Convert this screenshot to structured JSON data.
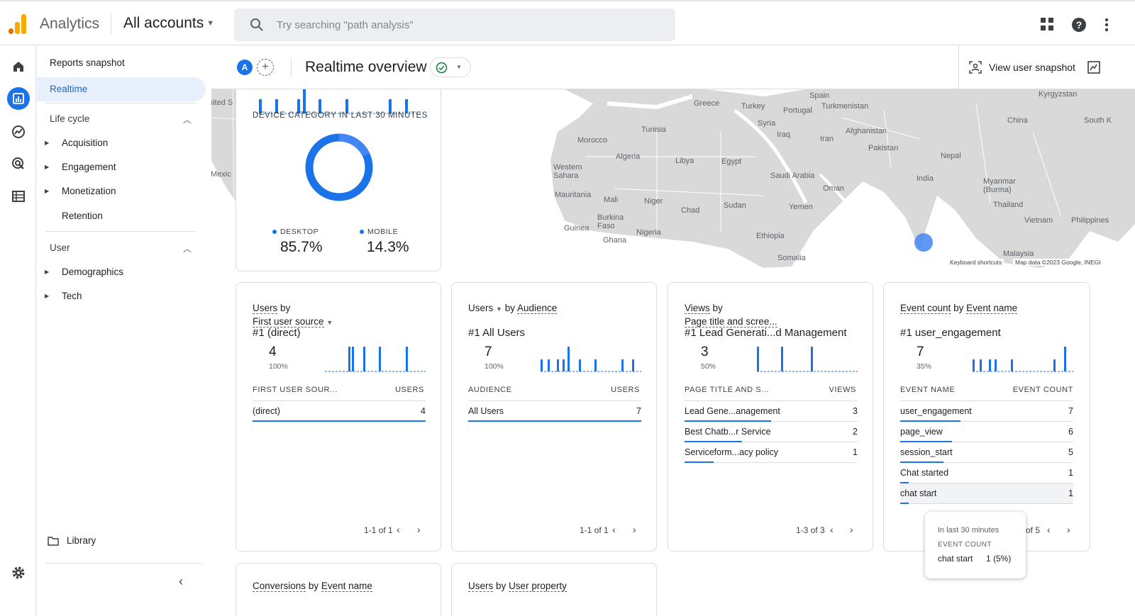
{
  "topbar": {
    "brand": "Analytics",
    "accounts": "All accounts",
    "search_placeholder": "Try searching \"path analysis\""
  },
  "sidenav": {
    "snapshot": "Reports snapshot",
    "realtime": "Realtime",
    "lifecycle": "Life cycle",
    "lifecycle_items": [
      "Acquisition",
      "Engagement",
      "Monetization",
      "Retention"
    ],
    "user": "User",
    "user_items": [
      "Demographics",
      "Tech"
    ],
    "library": "Library"
  },
  "header": {
    "avatar": "A",
    "title": "Realtime overview",
    "snapshot": "View user snapshot"
  },
  "map": {
    "labels": [
      "Spain",
      "Portugal",
      "Greece",
      "Turkey",
      "Turkmenistan",
      "Kyrgyzstan",
      "China",
      "South K",
      "Tunisia",
      "Syria",
      "Iraq",
      "Iran",
      "Afghanistan",
      "Morocco",
      "Algeria",
      "Libya",
      "Egypt",
      "Pakistan",
      "Nepal",
      "Western Sahara",
      "Saudi Arabia",
      "India",
      "Myanmar (Burma)",
      "Mauritania",
      "Mali",
      "Niger",
      "Oman",
      "Chad",
      "Sudan",
      "Yemen",
      "Thailand",
      "Burkina Faso",
      "Guinea",
      "Nigeria",
      "Ghana",
      "Ethiopia",
      "Vietnam",
      "Philippines",
      "Somalia",
      "Malaysia",
      "nited S",
      "Mexic"
    ],
    "footer_shortcuts": "Keyboard shortcuts",
    "footer_data": "Map data ©2023 Google, INEGI"
  },
  "device_card": {
    "title": "DEVICE CATEGORY IN LAST 30 MINUTES",
    "desktop_label": "DESKTOP",
    "desktop_value": "85.7%",
    "mobile_label": "MOBILE",
    "mobile_value": "14.3%"
  },
  "cards": [
    {
      "title_a": "Users",
      "title_b": "by",
      "title_c": "First user source",
      "top": "#1  (direct)",
      "value": "4",
      "pct": "100%",
      "col1": "FIRST USER SOUR...",
      "col2": "USERS",
      "rows": [
        {
          "label": "(direct)",
          "value": "4"
        }
      ],
      "pager": "1-1 of 1"
    },
    {
      "title_a": "Users",
      "title_b": "by",
      "title_c": "Audience",
      "top": "#1  All Users",
      "value": "7",
      "pct": "100%",
      "col1": "AUDIENCE",
      "col2": "USERS",
      "rows": [
        {
          "label": "All Users",
          "value": "7"
        }
      ],
      "pager": "1-1 of 1"
    },
    {
      "title_a": "Views",
      "title_b": "by",
      "title_c": "Page title and scree...",
      "top": "#1  Lead Generati...d Management",
      "value": "3",
      "pct": "50%",
      "col1": "PAGE TITLE AND S...",
      "col2": "VIEWS",
      "rows": [
        {
          "label": "Lead Gene...anagement",
          "value": "3"
        },
        {
          "label": "Best Chatb...r Service",
          "value": "2"
        },
        {
          "label": "Serviceform...acy policy",
          "value": "1"
        }
      ],
      "pager": "1-3 of 3"
    },
    {
      "title_a": "Event count",
      "title_b": "by",
      "title_c": "Event name",
      "top": "#1  user_engagement",
      "value": "7",
      "pct": "35%",
      "col1": "EVENT NAME",
      "col2": "EVENT COUNT",
      "rows": [
        {
          "label": "user_engagement",
          "value": "7"
        },
        {
          "label": "page_view",
          "value": "6"
        },
        {
          "label": "session_start",
          "value": "5"
        },
        {
          "label": "Chat started",
          "value": "1"
        },
        {
          "label": "chat start",
          "value": "1"
        }
      ],
      "pager": "of 5"
    }
  ],
  "tooltip": {
    "line1": "In last 30 minutes",
    "line2": "EVENT COUNT",
    "name": "chat start",
    "value": "1 (5%)"
  },
  "bottom_cards": [
    {
      "a": "Conversions",
      "b": "by",
      "c": "Event name"
    },
    {
      "a": "Users",
      "b": "by",
      "c": "User property"
    }
  ],
  "colors": {
    "accent": "#1a73e8",
    "accent_light": "#4285f4",
    "map_land": "#d9d9d9",
    "nav_active_bg": "#e8f0fe"
  }
}
